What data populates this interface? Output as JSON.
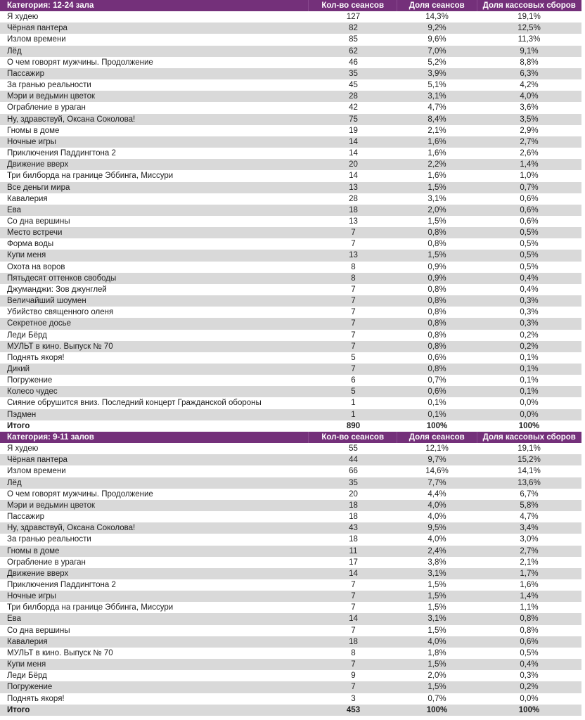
{
  "tables": [
    {
      "category": "Категория: 12-24 зала",
      "columns": [
        "Кол-во сеансов",
        "Доля сеансов",
        "Доля кассовых сборов"
      ],
      "rows": [
        [
          "Я худею",
          "127",
          "14,3%",
          "19,1%"
        ],
        [
          "Чёрная пантера",
          "82",
          "9,2%",
          "12,5%"
        ],
        [
          "Излом времени",
          "85",
          "9,6%",
          "11,3%"
        ],
        [
          "Лёд",
          "62",
          "7,0%",
          "9,1%"
        ],
        [
          "О чем говорят мужчины. Продолжение",
          "46",
          "5,2%",
          "8,8%"
        ],
        [
          "Пассажир",
          "35",
          "3,9%",
          "6,3%"
        ],
        [
          "За гранью реальности",
          "45",
          "5,1%",
          "4,2%"
        ],
        [
          "Мэри и ведьмин цветок",
          "28",
          "3,1%",
          "4,0%"
        ],
        [
          "Ограбление в ураган",
          "42",
          "4,7%",
          "3,6%"
        ],
        [
          "Ну, здравствуй, Оксана Соколова!",
          "75",
          "8,4%",
          "3,5%"
        ],
        [
          "Гномы в доме",
          "19",
          "2,1%",
          "2,9%"
        ],
        [
          "Ночные игры",
          "14",
          "1,6%",
          "2,7%"
        ],
        [
          "Приключения Паддингтона 2",
          "14",
          "1,6%",
          "2,6%"
        ],
        [
          "Движение вверх",
          "20",
          "2,2%",
          "1,4%"
        ],
        [
          "Три билборда на границе Эббинга, Миссури",
          "14",
          "1,6%",
          "1,0%"
        ],
        [
          "Все деньги мира",
          "13",
          "1,5%",
          "0,7%"
        ],
        [
          "Кавалерия",
          "28",
          "3,1%",
          "0,6%"
        ],
        [
          "Ева",
          "18",
          "2,0%",
          "0,6%"
        ],
        [
          "Со дна вершины",
          "13",
          "1,5%",
          "0,6%"
        ],
        [
          "Место встречи",
          "7",
          "0,8%",
          "0,5%"
        ],
        [
          "Форма воды",
          "7",
          "0,8%",
          "0,5%"
        ],
        [
          "Купи меня",
          "13",
          "1,5%",
          "0,5%"
        ],
        [
          "Охота на воров",
          "8",
          "0,9%",
          "0,5%"
        ],
        [
          "Пятьдесят оттенков свободы",
          "8",
          "0,9%",
          "0,4%"
        ],
        [
          "Джуманджи: Зов джунглей",
          "7",
          "0,8%",
          "0,4%"
        ],
        [
          "Величайший шоумен",
          "7",
          "0,8%",
          "0,3%"
        ],
        [
          "Убийство священного оленя",
          "7",
          "0,8%",
          "0,3%"
        ],
        [
          "Секретное досье",
          "7",
          "0,8%",
          "0,3%"
        ],
        [
          "Леди Бёрд",
          "7",
          "0,8%",
          "0,2%"
        ],
        [
          "МУЛЬТ в кино. Выпуск № 70",
          "7",
          "0,8%",
          "0,2%"
        ],
        [
          "Поднять якоря!",
          "5",
          "0,6%",
          "0,1%"
        ],
        [
          "Дикий",
          "7",
          "0,8%",
          "0,1%"
        ],
        [
          "Погружение",
          "6",
          "0,7%",
          "0,1%"
        ],
        [
          "Колесо чудес",
          "5",
          "0,6%",
          "0,1%"
        ],
        [
          "Сияние обрушится вниз. Последний концерт Гражданской обороны",
          "1",
          "0,1%",
          "0,0%"
        ],
        [
          "Пэдмен",
          "1",
          "0,1%",
          "0,0%"
        ]
      ],
      "total": [
        "Итого",
        "890",
        "100%",
        "100%"
      ]
    },
    {
      "category": "Категория: 9-11 залов",
      "columns": [
        "Кол-во сеансов",
        "Доля сеансов",
        "Доля кассовых сборов"
      ],
      "rows": [
        [
          "Я худею",
          "55",
          "12,1%",
          "19,1%"
        ],
        [
          "Чёрная пантера",
          "44",
          "9,7%",
          "15,2%"
        ],
        [
          "Излом времени",
          "66",
          "14,6%",
          "14,1%"
        ],
        [
          "Лёд",
          "35",
          "7,7%",
          "13,6%"
        ],
        [
          "О чем говорят мужчины. Продолжение",
          "20",
          "4,4%",
          "6,7%"
        ],
        [
          "Мэри и ведьмин цветок",
          "18",
          "4,0%",
          "5,8%"
        ],
        [
          "Пассажир",
          "18",
          "4,0%",
          "4,7%"
        ],
        [
          "Ну, здравствуй, Оксана Соколова!",
          "43",
          "9,5%",
          "3,4%"
        ],
        [
          "За гранью реальности",
          "18",
          "4,0%",
          "3,0%"
        ],
        [
          "Гномы в доме",
          "11",
          "2,4%",
          "2,7%"
        ],
        [
          "Ограбление в ураган",
          "17",
          "3,8%",
          "2,1%"
        ],
        [
          "Движение вверх",
          "14",
          "3,1%",
          "1,7%"
        ],
        [
          "Приключения Паддингтона 2",
          "7",
          "1,5%",
          "1,6%"
        ],
        [
          "Ночные игры",
          "7",
          "1,5%",
          "1,4%"
        ],
        [
          "Три билборда на границе Эббинга, Миссури",
          "7",
          "1,5%",
          "1,1%"
        ],
        [
          "Ева",
          "14",
          "3,1%",
          "0,8%"
        ],
        [
          "Со дна вершины",
          "7",
          "1,5%",
          "0,8%"
        ],
        [
          "Кавалерия",
          "18",
          "4,0%",
          "0,6%"
        ],
        [
          "МУЛЬТ в кино. Выпуск № 70",
          "8",
          "1,8%",
          "0,5%"
        ],
        [
          "Купи меня",
          "7",
          "1,5%",
          "0,4%"
        ],
        [
          "Леди Бёрд",
          "9",
          "2,0%",
          "0,3%"
        ],
        [
          "Погружение",
          "7",
          "1,5%",
          "0,2%"
        ],
        [
          "Поднять якоря!",
          "3",
          "0,7%",
          "0,0%"
        ]
      ],
      "total": [
        "Итого",
        "453",
        "100%",
        "100%"
      ]
    }
  ],
  "colors": {
    "header": "#74307a",
    "stripe": "#d9d9d9"
  }
}
